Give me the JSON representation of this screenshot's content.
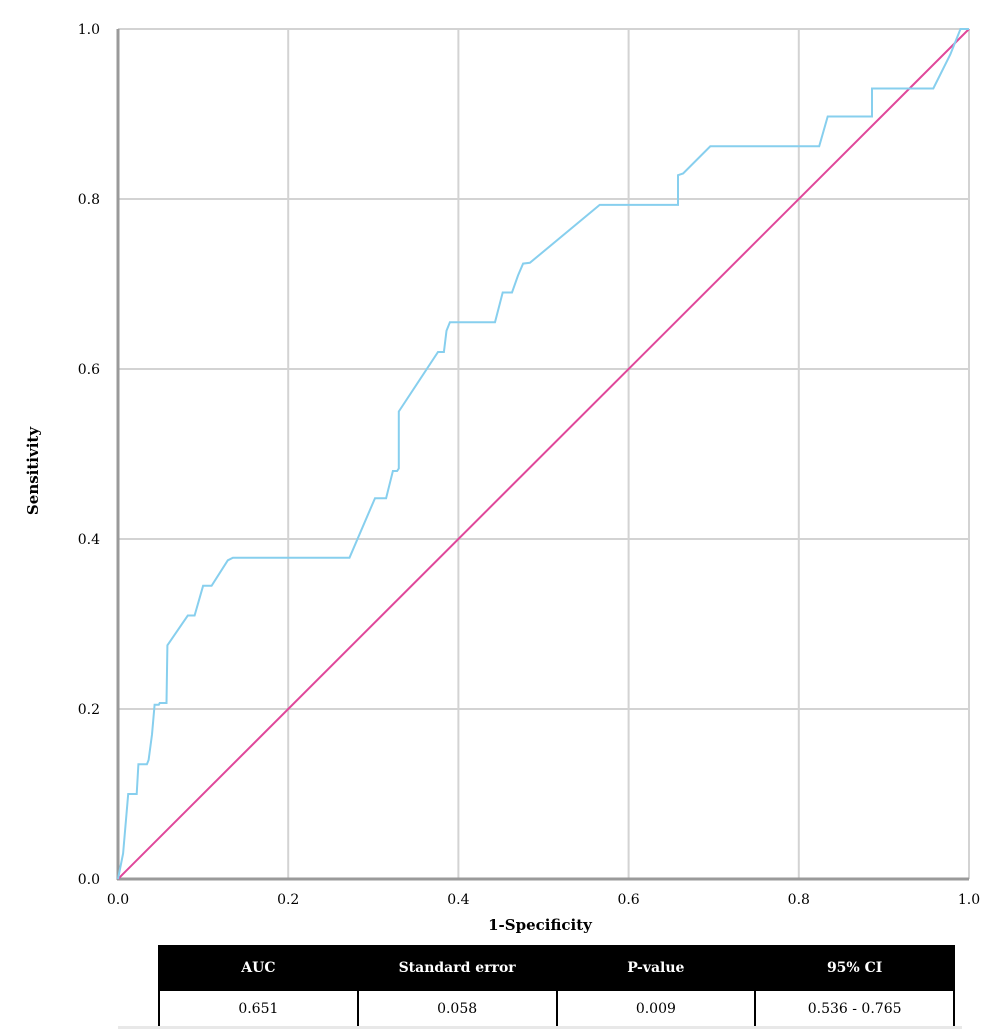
{
  "chart_data": {
    "type": "line",
    "xlabel": "1-Specificity",
    "ylabel": "Sensitivity",
    "xlim": [
      0,
      1
    ],
    "ylim": [
      0,
      1
    ],
    "x_ticks": [
      "0.0",
      "0.2",
      "0.4",
      "0.6",
      "0.8",
      "1.0"
    ],
    "y_ticks": [
      "0.0",
      "0.2",
      "0.4",
      "0.6",
      "0.8",
      "1.0"
    ],
    "grid": true,
    "legend": "none",
    "series": [
      {
        "role": "roc-curve",
        "color": "#87cfee",
        "x": [
          0,
          0.006,
          0.012,
          0.018,
          0.022,
          0.024,
          0.034,
          0.036,
          0.04,
          0.043,
          0.048,
          0.049,
          0.057,
          0.058,
          0.082,
          0.09,
          0.1,
          0.11,
          0.129,
          0.135,
          0.27,
          0.272,
          0.302,
          0.315,
          0.323,
          0.328,
          0.33,
          0.33,
          0.376,
          0.383,
          0.386,
          0.39,
          0.443,
          0.452,
          0.463,
          0.47,
          0.476,
          0.484,
          0.566,
          0.658,
          0.658,
          0.664,
          0.696,
          0.824,
          0.834,
          0.886,
          0.886,
          0.958,
          0.978,
          0.99,
          1.0
        ],
        "y": [
          0,
          0.03,
          0.1,
          0.1,
          0.1,
          0.135,
          0.135,
          0.14,
          0.17,
          0.205,
          0.205,
          0.207,
          0.207,
          0.275,
          0.31,
          0.31,
          0.345,
          0.345,
          0.375,
          0.378,
          0.378,
          0.378,
          0.448,
          0.448,
          0.48,
          0.48,
          0.483,
          0.55,
          0.62,
          0.62,
          0.645,
          0.655,
          0.655,
          0.69,
          0.69,
          0.71,
          0.724,
          0.725,
          0.793,
          0.793,
          0.828,
          0.83,
          0.862,
          0.862,
          0.897,
          0.897,
          0.93,
          0.93,
          0.97,
          1.0,
          1.0
        ]
      },
      {
        "role": "reference-line",
        "color": "#e0479a",
        "x": [
          0,
          1
        ],
        "y": [
          0,
          1
        ]
      }
    ]
  },
  "table": {
    "headers": [
      "AUC",
      "Standard error",
      "P-value",
      "95% CI"
    ],
    "rows": [
      [
        "0.651",
        "0.058",
        "0.009",
        "0.536 - 0.765"
      ]
    ]
  }
}
